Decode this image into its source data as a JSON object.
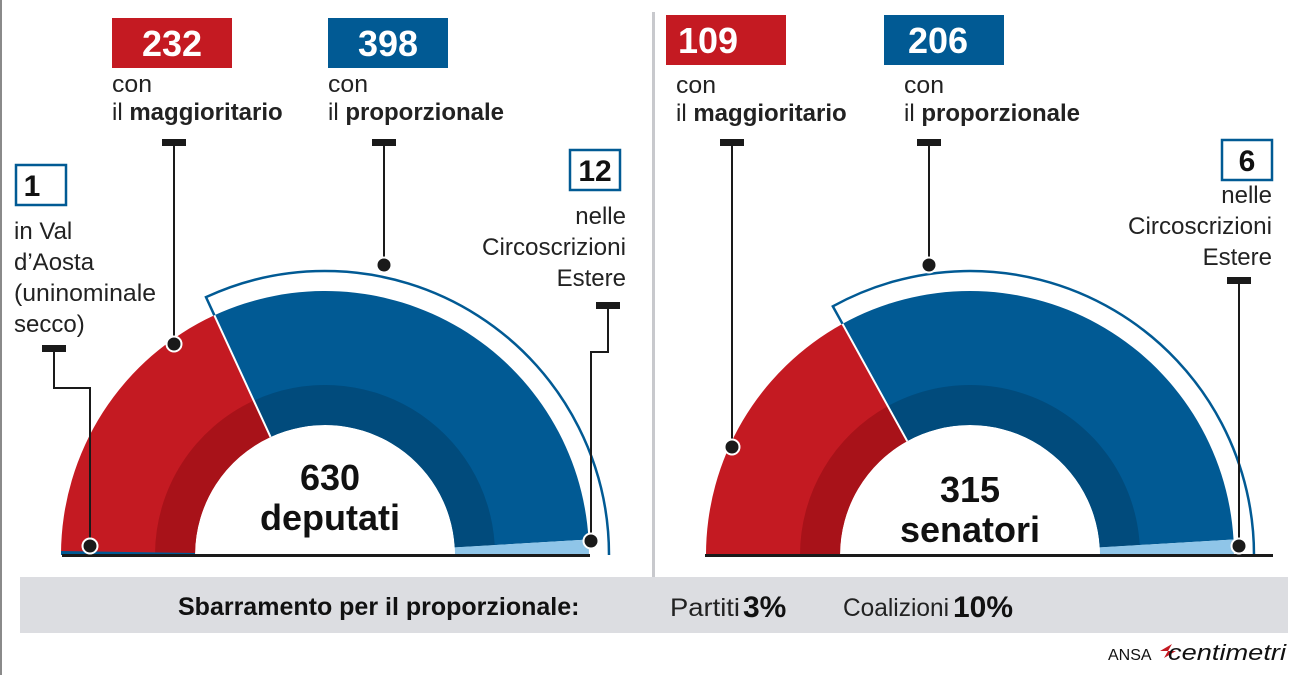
{
  "camera": {
    "majoritarian": {
      "value": "232",
      "line1": "con",
      "line2_prefix": "il ",
      "line2_bold": "maggioritario"
    },
    "proportional": {
      "value": "398",
      "line1": "con",
      "line2_prefix": "il ",
      "line2_bold": "proporzionale"
    },
    "aosta": {
      "value": "1",
      "lines": [
        "in Val",
        "d’Aosta",
        "(uninominale",
        "secco)"
      ]
    },
    "abroad": {
      "value": "12",
      "lines": [
        "nelle",
        "Circoscrizioni",
        "Estere"
      ]
    },
    "total_number": "630",
    "total_label": "deputati"
  },
  "senato": {
    "majoritarian": {
      "value": "109",
      "line1": "con",
      "line2_prefix": "il ",
      "line2_bold": "maggioritario"
    },
    "proportional": {
      "value": "206",
      "line1": "con",
      "line2_prefix": "il ",
      "line2_bold": "proporzionale"
    },
    "abroad": {
      "value": "6",
      "lines": [
        "nelle",
        "Circoscrizioni",
        "Estere"
      ]
    },
    "total_number": "315",
    "total_label": "senatori"
  },
  "footer": {
    "threshold_label": "Sbarramento per il proporzionale:",
    "parties_label": "Partiti",
    "parties_value": "3%",
    "coalitions_label": "Coalizioni",
    "coalitions_value": "10%"
  },
  "credit": {
    "agency": "ANSA",
    "brand": "centimetri"
  },
  "colors": {
    "red": "#c41a22",
    "red_dark": "#a81219",
    "blue": "#015a94",
    "blue_dark": "#014b7c",
    "light_blue": "#8fc5e8",
    "bar": "#dcdde1"
  },
  "chart_data": [
    {
      "type": "pie",
      "categories": [
        "Val d’Aosta (uninominale secco)",
        "maggioritario",
        "proporzionale",
        "Circoscrizioni Estere"
      ],
      "values": [
        1,
        232,
        398,
        12
      ],
      "total": 630
    },
    {
      "type": "pie",
      "categories": [
        "maggioritario",
        "proporzionale",
        "Circoscrizioni Estere"
      ],
      "values": [
        109,
        206,
        6
      ],
      "total": 315
    }
  ]
}
